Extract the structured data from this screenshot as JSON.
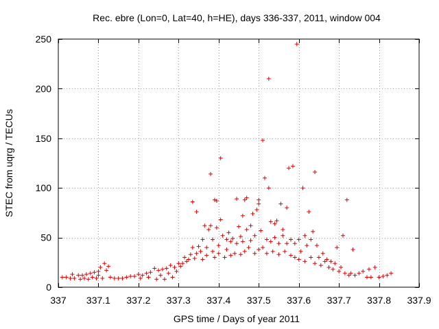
{
  "chart_data": {
    "type": "scatter",
    "title": "Rec. ebre (Lon=0, Lat=40, h=HE), days 336-337, 2011, window 004",
    "xlabel": "GPS time / Days of year 2011",
    "ylabel": "STEC from uqrg / TECUs",
    "xlim": [
      337,
      337.9
    ],
    "ylim": [
      0,
      250
    ],
    "xticks": [
      337,
      337.1,
      337.2,
      337.3,
      337.4,
      337.5,
      337.6,
      337.7,
      337.8,
      337.9
    ],
    "xtick_labels": [
      "337",
      "337.1",
      "337.2",
      "337.3",
      "337.4",
      "337.5",
      "337.6",
      "337.7",
      "337.8",
      "337.9"
    ],
    "yticks": [
      0,
      50,
      100,
      150,
      200,
      250
    ],
    "ytick_labels": [
      "0",
      "50",
      "100",
      "150",
      "200",
      "250"
    ],
    "grid": true,
    "marker": "+",
    "color": "#e00000",
    "series": [
      {
        "name": "STEC",
        "points": [
          [
            337.01,
            10
          ],
          [
            337.02,
            10
          ],
          [
            337.03,
            9
          ],
          [
            337.035,
            13
          ],
          [
            337.04,
            9
          ],
          [
            337.05,
            12
          ],
          [
            337.055,
            8
          ],
          [
            337.06,
            12
          ],
          [
            337.065,
            9
          ],
          [
            337.07,
            13
          ],
          [
            337.075,
            8
          ],
          [
            337.08,
            14
          ],
          [
            337.085,
            10
          ],
          [
            337.09,
            15
          ],
          [
            337.095,
            9
          ],
          [
            337.1,
            16
          ],
          [
            337.1,
            12
          ],
          [
            337.105,
            20
          ],
          [
            337.11,
            9
          ],
          [
            337.115,
            24
          ],
          [
            337.12,
            17
          ],
          [
            337.125,
            21
          ],
          [
            337.13,
            10
          ],
          [
            337.14,
            9
          ],
          [
            337.15,
            9
          ],
          [
            337.16,
            9
          ],
          [
            337.17,
            10
          ],
          [
            337.18,
            11
          ],
          [
            337.19,
            11
          ],
          [
            337.2,
            13
          ],
          [
            337.205,
            9
          ],
          [
            337.21,
            12
          ],
          [
            337.22,
            14
          ],
          [
            337.225,
            10
          ],
          [
            337.23,
            15
          ],
          [
            337.24,
            19
          ],
          [
            337.245,
            8
          ],
          [
            337.25,
            17
          ],
          [
            337.255,
            12
          ],
          [
            337.26,
            18
          ],
          [
            337.265,
            8
          ],
          [
            337.27,
            19
          ],
          [
            337.275,
            14
          ],
          [
            337.28,
            22
          ],
          [
            337.285,
            10
          ],
          [
            337.29,
            20
          ],
          [
            337.295,
            16
          ],
          [
            337.3,
            24
          ],
          [
            337.305,
            21
          ],
          [
            337.31,
            24
          ],
          [
            337.315,
            30
          ],
          [
            337.32,
            26
          ],
          [
            337.325,
            28
          ],
          [
            337.33,
            33
          ],
          [
            337.335,
            40
          ],
          [
            337.335,
            86
          ],
          [
            337.34,
            29
          ],
          [
            337.345,
            34
          ],
          [
            337.345,
            76
          ],
          [
            337.35,
            41
          ],
          [
            337.355,
            36
          ],
          [
            337.36,
            28
          ],
          [
            337.36,
            48
          ],
          [
            337.365,
            62
          ],
          [
            337.37,
            32
          ],
          [
            337.37,
            40
          ],
          [
            337.375,
            58
          ],
          [
            337.38,
            62
          ],
          [
            337.38,
            114
          ],
          [
            337.385,
            36
          ],
          [
            337.385,
            48
          ],
          [
            337.39,
            30
          ],
          [
            337.39,
            88
          ],
          [
            337.395,
            60
          ],
          [
            337.395,
            87
          ],
          [
            337.4,
            42
          ],
          [
            337.4,
            34
          ],
          [
            337.405,
            68
          ],
          [
            337.405,
            130
          ],
          [
            337.41,
            52
          ],
          [
            337.415,
            30
          ],
          [
            337.42,
            48
          ],
          [
            337.42,
            38
          ],
          [
            337.425,
            55
          ],
          [
            337.43,
            32
          ],
          [
            337.43,
            46
          ],
          [
            337.435,
            49
          ],
          [
            337.44,
            34
          ],
          [
            337.445,
            44
          ],
          [
            337.445,
            89
          ],
          [
            337.45,
            61
          ],
          [
            337.455,
            33
          ],
          [
            337.455,
            51
          ],
          [
            337.46,
            46
          ],
          [
            337.46,
            72
          ],
          [
            337.465,
            36
          ],
          [
            337.465,
            88
          ],
          [
            337.47,
            58
          ],
          [
            337.47,
            90
          ],
          [
            337.475,
            40
          ],
          [
            337.48,
            47
          ],
          [
            337.48,
            62
          ],
          [
            337.485,
            74
          ],
          [
            337.49,
            34
          ],
          [
            337.49,
            52
          ],
          [
            337.495,
            78
          ],
          [
            337.5,
            38
          ],
          [
            337.5,
            88
          ],
          [
            337.5,
            84
          ],
          [
            337.505,
            57
          ],
          [
            337.51,
            40
          ],
          [
            337.51,
            148
          ],
          [
            337.515,
            110
          ],
          [
            337.52,
            48
          ],
          [
            337.52,
            34
          ],
          [
            337.525,
            210
          ],
          [
            337.525,
            100
          ],
          [
            337.53,
            46
          ],
          [
            337.53,
            66
          ],
          [
            337.535,
            36
          ],
          [
            337.54,
            50
          ],
          [
            337.54,
            64
          ],
          [
            337.545,
            67
          ],
          [
            337.55,
            33
          ],
          [
            337.55,
            44
          ],
          [
            337.555,
            84
          ],
          [
            337.56,
            58
          ],
          [
            337.56,
            52
          ],
          [
            337.565,
            36
          ],
          [
            337.57,
            44
          ],
          [
            337.57,
            80
          ],
          [
            337.575,
            120
          ],
          [
            337.58,
            32
          ],
          [
            337.58,
            48
          ],
          [
            337.585,
            122
          ],
          [
            337.59,
            30
          ],
          [
            337.59,
            44
          ],
          [
            337.595,
            245
          ],
          [
            337.6,
            28
          ],
          [
            337.6,
            48
          ],
          [
            337.605,
            36
          ],
          [
            337.61,
            100
          ],
          [
            337.615,
            52
          ],
          [
            337.615,
            26
          ],
          [
            337.62,
            42
          ],
          [
            337.625,
            76
          ],
          [
            337.63,
            30
          ],
          [
            337.63,
            48
          ],
          [
            337.635,
            56
          ],
          [
            337.64,
            116
          ],
          [
            337.64,
            24
          ],
          [
            337.645,
            42
          ],
          [
            337.65,
            30
          ],
          [
            337.655,
            22
          ],
          [
            337.66,
            34
          ],
          [
            337.665,
            26
          ],
          [
            337.67,
            28
          ],
          [
            337.675,
            20
          ],
          [
            337.68,
            26
          ],
          [
            337.685,
            18
          ],
          [
            337.69,
            24
          ],
          [
            337.695,
            40
          ],
          [
            337.7,
            16
          ],
          [
            337.705,
            20
          ],
          [
            337.71,
            52
          ],
          [
            337.715,
            14
          ],
          [
            337.72,
            88
          ],
          [
            337.725,
            12
          ],
          [
            337.73,
            14
          ],
          [
            337.735,
            38
          ],
          [
            337.74,
            12
          ],
          [
            337.75,
            14
          ],
          [
            337.76,
            16
          ],
          [
            337.77,
            10
          ],
          [
            337.775,
            18
          ],
          [
            337.78,
            10
          ],
          [
            337.79,
            20
          ],
          [
            337.8,
            10
          ],
          [
            337.81,
            11
          ],
          [
            337.82,
            12
          ],
          [
            337.83,
            14
          ]
        ]
      }
    ]
  }
}
